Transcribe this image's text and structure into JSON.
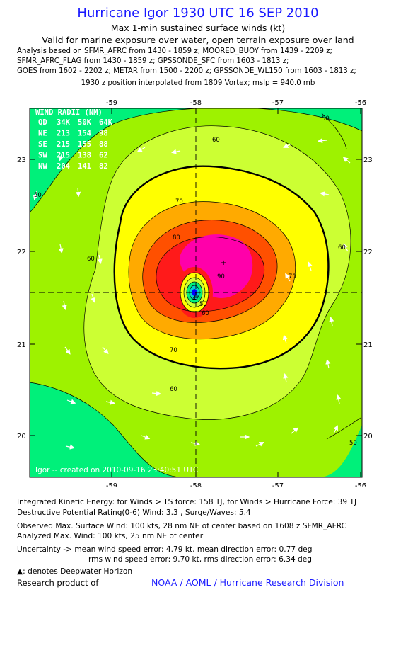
{
  "header": {
    "title": "Hurricane Igor 1930 UTC 16 SEP 2010",
    "subtitle1": "Max 1-min sustained surface winds (kt)",
    "subtitle2": "Valid for marine exposure over water, open terrain exposure over land"
  },
  "analysis_lines": [
    "Analysis based on SFMR_AFRC from 1430 - 1859 z; MOORED_BUOY from 1439 - 2209 z;",
    "SFMR_AFRC_FLAG from 1430 - 1859 z; GPSSONDE_SFC from 1603 - 1813 z;",
    "GOES from 1602 - 2202 z; METAR from 1500 - 2200 z; GPSSONDE_WL150 from 1603 - 1813 z;"
  ],
  "position_line": "1930 z position interpolated from 1809 Vortex; mslp = 940.0 mb",
  "map": {
    "x_ticks": [
      "-59",
      "-58",
      "-57",
      "-56"
    ],
    "y_ticks": [
      "23",
      "22",
      "21",
      "20"
    ],
    "wind_radii": {
      "title": "WIND RADII (NM)",
      "header": [
        "QD",
        "34K",
        "50K",
        "64K"
      ],
      "rows": [
        [
          "NE",
          "213",
          "154",
          "98"
        ],
        [
          "SE",
          "215",
          "155",
          "88"
        ],
        [
          "SW",
          "215",
          "138",
          "62"
        ],
        [
          "NW",
          "204",
          "141",
          "82"
        ]
      ]
    },
    "contour_labels": [
      "60",
      "60",
      "60",
      "60",
      "70",
      "70",
      "70",
      "80",
      "90",
      "50",
      "50",
      "50",
      "60",
      "50",
      "40"
    ],
    "credit": "Igor -- created on 2010-09-16 23:40:51 UTC",
    "colors": {
      "band_40": "#00f07a",
      "band_50": "#9ef200",
      "band_60": "#ccff33",
      "band_64": "#ffff00",
      "band_70": "#ffaa00",
      "band_80": "#ff5000",
      "band_90": "#ff1a1a",
      "band_95": "#ff00aa",
      "eye_low": "#00d0d0",
      "eye_center": "#0000ff"
    }
  },
  "footer": {
    "ike": "Integrated Kinetic Energy:  for Winds > TS force: 158 TJ,  for Winds > Hurricane Force: 39 TJ",
    "dpr": "Destructive Potential Rating(0-6)   Wind: 3.3 , Surge/Waves: 5.4",
    "obs_max": "Observed Max. Surface Wind: 100 kts, 28 nm NE of center based on 1608 z SFMR_AFRC",
    "ana_max": "Analyzed Max. Wind: 100 kts, 25 nm NE of center",
    "unc1": "Uncertainty -> mean wind speed error: 4.79 kt,   mean direction error: 0.77 deg",
    "unc2": "rms wind speed error: 9.70 kt,    rms direction error: 6.34 deg",
    "deepwater": ": denotes Deepwater Horizon",
    "research": "Research product of",
    "noaa": "NOAA / AOML / Hurricane Research Division"
  }
}
